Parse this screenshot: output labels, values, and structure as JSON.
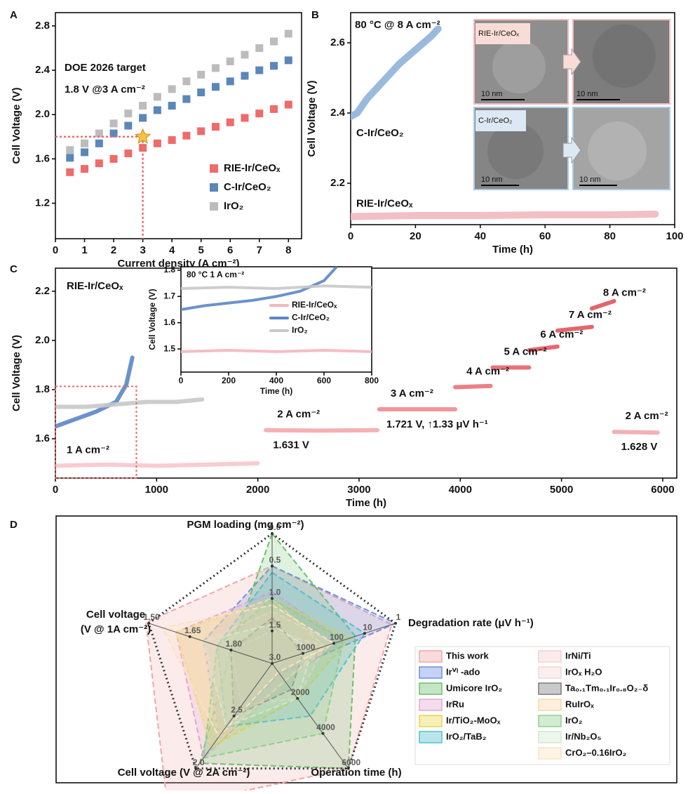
{
  "chart_data": [
    {
      "type": "scatter",
      "panel": "A",
      "x_label": "Current density (A cm⁻²)",
      "y_label": "Cell Voltage (V)",
      "annotations": [
        "DOE 2026 target",
        "1.8 V @3 A cm⁻²"
      ],
      "target": {
        "x": 3,
        "y": 1.8
      },
      "x": [
        0.5,
        1,
        1.5,
        2,
        2.5,
        3,
        3.5,
        4,
        4.5,
        5,
        5.5,
        6,
        6.5,
        7,
        7.5,
        8
      ],
      "series": [
        {
          "name": "RIE-Ir/CeOₓ",
          "color": "#ef6b6b",
          "values": [
            1.48,
            1.51,
            1.56,
            1.6,
            1.65,
            1.7,
            1.74,
            1.77,
            1.81,
            1.85,
            1.89,
            1.93,
            1.97,
            2.01,
            2.05,
            2.09
          ]
        },
        {
          "name": "C-Ir/CeO₂",
          "color": "#5b86b8",
          "values": [
            1.61,
            1.66,
            1.74,
            1.83,
            1.9,
            1.97,
            2.04,
            2.08,
            2.14,
            2.2,
            2.25,
            2.3,
            2.35,
            2.4,
            2.44,
            2.49
          ]
        },
        {
          "name": "IrO₂",
          "color": "#bcbcbc",
          "values": [
            1.68,
            1.74,
            1.83,
            1.92,
            2.01,
            2.08,
            2.16,
            2.23,
            2.3,
            2.36,
            2.42,
            2.48,
            2.54,
            2.6,
            2.66,
            2.73
          ]
        }
      ],
      "xlim": [
        0,
        8.45
      ],
      "ylim": [
        0.88,
        2.92
      ],
      "xticks": [
        0,
        1,
        2,
        3,
        4,
        5,
        6,
        7,
        8
      ],
      "yticks": [
        1.2,
        1.6,
        {
          "value": 2,
          "label": "2.0"
        },
        2.4,
        2.8
      ],
      "legend": "lower right"
    },
    {
      "type": "line",
      "panel": "B",
      "x_label": "Time (h)",
      "y_label": "Cell Voltage (V)",
      "annotations": [
        "80 °C @ 8 A cm⁻²"
      ],
      "inset_labels": [
        "RIE-Ir/CeOₓ",
        "C-Ir/CeO₂"
      ],
      "scale_bars": [
        "10 nm",
        "10 nm",
        "10 nm",
        "10 nm"
      ],
      "series": [
        {
          "name": "C-Ir/CeO₂",
          "color": "#8fb2d9",
          "x": [
            0,
            2,
            5,
            10,
            15,
            20,
            25,
            27
          ],
          "values": [
            2.39,
            2.4,
            2.44,
            2.49,
            2.54,
            2.58,
            2.62,
            2.64
          ]
        },
        {
          "name": "RIE-Ir/CeOₓ",
          "color": "#f2b8bd",
          "x": [
            0,
            20,
            40,
            60,
            80,
            94
          ],
          "values": [
            2.105,
            2.108,
            2.108,
            2.11,
            2.11,
            2.112
          ]
        }
      ],
      "xlim": [
        0,
        100
      ],
      "ylim": [
        2.082,
        2.686
      ],
      "xticks": [
        0,
        20,
        40,
        60,
        80,
        100
      ],
      "yticks": [
        2.2,
        2.4,
        2.6
      ]
    },
    {
      "type": "line",
      "panel": "C",
      "x_label": "Time (h)",
      "y_label": "Cell Voltage (V)",
      "annotations": [
        "RIE-Ir/CeOₓ"
      ],
      "series": [
        {
          "name": "1 A cm⁻²",
          "color": "#f7c6cc",
          "x": [
            0,
            500,
            1000,
            1500,
            2000
          ],
          "values": [
            1.49,
            1.495,
            1.49,
            1.495,
            1.5
          ]
        },
        {
          "color": "#5b86c5",
          "x": [
            0,
            200,
            400,
            600,
            700,
            760
          ],
          "values": [
            1.65,
            1.68,
            1.71,
            1.75,
            1.82,
            1.93
          ]
        },
        {
          "color": "#c8c8c8",
          "x": [
            0,
            300,
            600,
            900,
            1200,
            1450
          ],
          "values": [
            1.73,
            1.73,
            1.74,
            1.75,
            1.75,
            1.76
          ]
        },
        {
          "name": "2 A cm⁻²",
          "value_label": "1.631 V",
          "color": "#f4a7ab",
          "x": [
            2080,
            2600,
            3180
          ],
          "values": [
            1.635,
            1.633,
            1.635
          ]
        },
        {
          "name": "3 A cm⁻²",
          "value_label": "1.721 V, ↑1.33 μV h⁻¹",
          "color": "#ee8a8f",
          "x": [
            3200,
            3600,
            3950
          ],
          "values": [
            1.72,
            1.72,
            1.72
          ]
        },
        {
          "name": "4 A cm⁻²",
          "color": "#ea7278",
          "x": [
            3950,
            4300
          ],
          "values": [
            1.81,
            1.815
          ]
        },
        {
          "name": "5 A cm⁻²",
          "color": "#e6636a",
          "x": [
            4320,
            4680
          ],
          "values": [
            1.89,
            1.89
          ]
        },
        {
          "name": "6 A cm⁻²",
          "color": "#e35a61",
          "x": [
            4680,
            4960
          ],
          "values": [
            1.96,
            1.975
          ]
        },
        {
          "name": "7 A cm⁻²",
          "color": "#e0555c",
          "x": [
            4960,
            5300
          ],
          "values": [
            2.04,
            2.055
          ]
        },
        {
          "name": "8 A cm⁻²",
          "color": "#e0555c",
          "x": [
            5300,
            5520
          ],
          "values": [
            2.13,
            2.16
          ]
        },
        {
          "name": "2 A cm⁻²",
          "value_label": "1.628 V",
          "color": "#f4a7ab",
          "x": [
            5520,
            5950
          ],
          "values": [
            1.628,
            1.625
          ]
        }
      ],
      "xlim": [
        0,
        6139
      ],
      "ylim": [
        1.44,
        2.294
      ],
      "xticks": [
        0,
        1000,
        2000,
        3000,
        4000,
        5000,
        6000
      ],
      "yticks": [
        1.6,
        1.8,
        {
          "value": 2,
          "label": "2.0"
        },
        2.2
      ]
    },
    {
      "type": "line",
      "x_label": "Time (h)",
      "y_label": "Cell Voltage (V)",
      "annotations": [
        "80 °C  1 A cm⁻²"
      ],
      "series": [
        {
          "name": "RIE-Ir/CeOₓ",
          "color": "#f4b6bb",
          "x": [
            0,
            200,
            400,
            600,
            800
          ],
          "values": [
            1.49,
            1.495,
            1.49,
            1.495,
            1.49
          ]
        },
        {
          "name": "C-Ir/CeO₂",
          "color": "#5b86c5",
          "x": [
            0,
            100,
            200,
            300,
            400,
            500,
            600,
            650
          ],
          "values": [
            1.65,
            1.665,
            1.675,
            1.685,
            1.7,
            1.72,
            1.76,
            1.81
          ]
        },
        {
          "name": "IrO₂",
          "color": "#c8c8c8",
          "x": [
            0,
            200,
            400,
            600,
            800
          ],
          "values": [
            1.73,
            1.735,
            1.73,
            1.74,
            1.735
          ]
        }
      ],
      "xlim": [
        0,
        800
      ],
      "ylim": [
        1.412,
        1.813
      ],
      "xticks": [
        0,
        200,
        400,
        600,
        800
      ],
      "yticks": [
        1.5,
        1.6,
        1.7,
        1.8
      ],
      "legend": "center right"
    },
    {
      "type": "radar",
      "panel": "D",
      "axes": [
        {
          "label": "PGM loading (mg cm⁻²)",
          "lim": [
            2,
            0
          ],
          "ticks": [
            {
              "value": 0,
              "label": "0.0"
            },
            0.5,
            {
              "value": 1,
              "label": "1.0"
            },
            1.5
          ]
        },
        {
          "label": "Degradation rate (μV h⁻¹)",
          "lim": [
            10000,
            1
          ],
          "log": true,
          "ticks": [
            1,
            10,
            100,
            1000
          ]
        },
        {
          "label": "Operation time (h)",
          "lim": [
            0,
            6000
          ],
          "ticks": [
            2000,
            4000,
            6000
          ]
        },
        {
          "label": "Cell voltage (V @ 2A cm⁻²)",
          "lim": [
            3,
            2
          ],
          "ticks": [
            {
              "value": 2,
              "label": "2.0"
            },
            2.5,
            {
              "value": 3,
              "label": "3.0"
            }
          ]
        },
        {
          "label": [
            "Cell voltage",
            "(V @ 1A cm⁻²)"
          ],
          "lim": [
            1.95,
            1.5
          ],
          "ticks": [
            {
              "value": 1.5,
              "label": "1.50"
            },
            1.65,
            {
              "value": 1.8,
              "label": "1.80"
            }
          ]
        }
      ],
      "series": [
        {
          "name": "This work",
          "color": "#f3a6a6",
          "values": [
            0.5,
            1.33,
            6000,
            1.63,
            1.49
          ]
        },
        {
          "name": "Irⱽᴵ -ado",
          "color": "#6f8fe0",
          "values": [
            0.5,
            1,
            600,
            2.3,
            1.7
          ]
        },
        {
          "name": "Umicore IrO₂",
          "color": "#6cc06c",
          "values": [
            0,
            20,
            6000,
            2.05,
            1.8
          ]
        },
        {
          "name": "IrRu",
          "color": "#e0a8d0",
          "values": [
            0.9,
            50,
            1000,
            2.1,
            1.6
          ]
        },
        {
          "name": "Ir/TiO₂-MoOₓ",
          "color": "#e8d64a",
          "values": [
            1,
            30,
            2000,
            2.2,
            1.6
          ]
        },
        {
          "name": "IrO₂/TaB₂",
          "color": "#52c0cc",
          "values": [
            0.6,
            10,
            3000,
            2.4,
            1.75
          ]
        },
        {
          "name": "IrNi/Ti",
          "color": "#f6cfcf",
          "values": [
            1.2,
            100,
            1000,
            2.3,
            1.7
          ]
        },
        {
          "name": "IrOₓ H₂O",
          "color": "#f2d6d6",
          "values": [
            1.5,
            200,
            2000,
            2.6,
            1.8
          ]
        },
        {
          "name": "Ta₀.₁Tm₀.₁Ir₀.₈O₂₋δ",
          "color": "#7a7a7a",
          "values": [
            1.3,
            1000,
            1500,
            2.5,
            1.8
          ]
        },
        {
          "name": "RuIrOₓ",
          "color": "#f7d9a8",
          "values": [
            1,
            200,
            1000,
            2.2,
            1.6
          ]
        },
        {
          "name": "IrO₂",
          "color": "#8fcf8f",
          "values": [
            1,
            50,
            4000,
            2.1,
            1.75
          ]
        },
        {
          "name": "Ir/Nb₂O₅",
          "color": "#cfe8cf",
          "values": [
            1.4,
            500,
            2000,
            2.4,
            1.7
          ]
        },
        {
          "name": "CrO₂–0.16IrO₂",
          "color": "#fbe3c0",
          "values": [
            1.1,
            100,
            500,
            2.3,
            1.55
          ]
        }
      ]
    }
  ]
}
